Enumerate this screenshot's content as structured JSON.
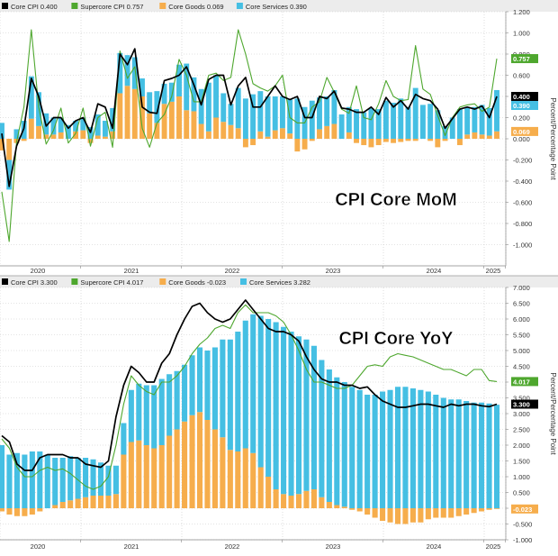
{
  "colors": {
    "core": "#000000",
    "supercore": "#4ea72e",
    "goods": "#f6ad4c",
    "services": "#45bfe3",
    "grid": "#c8c8c8",
    "legend_bg": "#ececec",
    "axis_text": "#333333"
  },
  "axis": {
    "side_label": "Percent/Percentage Point",
    "year_labels": [
      "2020",
      "2021",
      "2022",
      "2023",
      "2024",
      "2025"
    ]
  },
  "chart_data": [
    {
      "type": "bar",
      "title": "CPI Core MoM",
      "ylabel": "Percent/Percentage Point",
      "ylim": [
        -1.2,
        1.2
      ],
      "yticks": [
        "1.200",
        "1.000",
        "0.800",
        "0.600",
        "0.400",
        "0.200",
        "0.000",
        "-0.200",
        "-0.400",
        "-0.600",
        "-0.800",
        "-1.000"
      ],
      "legend": [
        {
          "label": "Core CPI",
          "value": "0.400",
          "color": "#000000"
        },
        {
          "label": "Supercore CPI",
          "value": "0.757",
          "color": "#4ea72e"
        },
        {
          "label": "Core Goods",
          "value": "0.069",
          "color": "#f6ad4c"
        },
        {
          "label": "Core Services",
          "value": "0.390",
          "color": "#45bfe3"
        }
      ],
      "end_labels": [
        {
          "text": "0.757",
          "value": 0.757,
          "color": "#4ea72e"
        },
        {
          "text": "0.400",
          "value": 0.4,
          "color": "#000000"
        },
        {
          "text": "0.390",
          "value": 0.39,
          "color": "#45bfe3",
          "under": true
        },
        {
          "text": "0.069",
          "value": 0.069,
          "color": "#f6ad4c"
        }
      ],
      "series": [
        {
          "name": "Core Goods",
          "kind": "bar",
          "values": [
            -0.11,
            -0.2,
            -0.04,
            -0.02,
            0.19,
            0.12,
            0.04,
            0.04,
            0.06,
            0.0,
            0.07,
            0.08,
            -0.04,
            0.03,
            0.02,
            0.07,
            0.43,
            0.5,
            0.47,
            0.4,
            0.24,
            0.15,
            0.33,
            0.35,
            0.4,
            0.27,
            0.26,
            0.14,
            0.07,
            0.2,
            0.16,
            0.13,
            0.1,
            -0.08,
            -0.06,
            0.07,
            0.02,
            0.08,
            0.1,
            0.05,
            -0.12,
            -0.1,
            -0.02,
            0.09,
            0.12,
            0.14,
            0.0,
            0.06,
            -0.04,
            -0.06,
            -0.08,
            -0.06,
            -0.03,
            -0.04,
            -0.03,
            -0.02,
            -0.02,
            0.0,
            -0.02,
            -0.08,
            -0.02,
            0.0,
            -0.06,
            0.04,
            0.06,
            0.04,
            0.03,
            0.07
          ]
        },
        {
          "name": "Core Services",
          "kind": "bar",
          "values": [
            0.15,
            -0.28,
            0.09,
            0.17,
            0.4,
            0.32,
            0.2,
            0.16,
            0.14,
            0.13,
            0.1,
            0.12,
            0.11,
            0.2,
            0.15,
            0.22,
            0.38,
            0.29,
            0.3,
            0.17,
            0.2,
            0.3,
            0.19,
            0.18,
            0.3,
            0.44,
            0.32,
            0.33,
            0.46,
            0.4,
            0.27,
            0.2,
            0.38,
            0.38,
            0.42,
            0.38,
            0.38,
            0.32,
            0.3,
            0.32,
            0.38,
            0.3,
            0.36,
            0.3,
            0.28,
            0.32,
            0.23,
            0.24,
            0.28,
            0.25,
            0.29,
            0.28,
            0.36,
            0.34,
            0.38,
            0.3,
            0.48,
            0.32,
            0.33,
            0.27,
            0.12,
            0.2,
            0.28,
            0.26,
            0.24,
            0.28,
            0.26,
            0.39
          ]
        },
        {
          "name": "Core CPI",
          "kind": "line",
          "values": [
            0.05,
            -0.45,
            -0.07,
            0.1,
            0.57,
            0.4,
            0.12,
            0.2,
            0.2,
            0.1,
            0.17,
            0.2,
            0.06,
            0.33,
            0.3,
            0.1,
            0.8,
            0.7,
            0.85,
            0.3,
            0.25,
            0.24,
            0.55,
            0.57,
            0.6,
            0.68,
            0.51,
            0.32,
            0.56,
            0.6,
            0.6,
            0.32,
            0.5,
            0.58,
            0.3,
            0.3,
            0.4,
            0.5,
            0.4,
            0.37,
            0.4,
            0.2,
            0.2,
            0.4,
            0.38,
            0.45,
            0.29,
            0.28,
            0.25,
            0.25,
            0.3,
            0.23,
            0.39,
            0.3,
            0.36,
            0.28,
            0.42,
            0.38,
            0.36,
            0.28,
            0.1,
            0.19,
            0.28,
            0.3,
            0.28,
            0.31,
            0.2,
            0.4
          ]
        },
        {
          "name": "Supercore CPI",
          "kind": "line",
          "values": [
            -0.5,
            -0.97,
            -0.03,
            0.3,
            1.03,
            0.3,
            -0.05,
            0.08,
            0.29,
            -0.04,
            0.05,
            0.29,
            -0.07,
            0.2,
            0.25,
            -0.08,
            0.83,
            0.57,
            0.68,
            0.1,
            -0.08,
            0.15,
            0.23,
            0.4,
            0.75,
            0.6,
            0.35,
            0.35,
            0.6,
            0.62,
            0.55,
            0.58,
            1.03,
            0.8,
            0.52,
            0.48,
            0.45,
            0.5,
            0.6,
            0.2,
            0.15,
            0.15,
            0.3,
            0.35,
            0.58,
            0.44,
            0.28,
            0.24,
            0.5,
            0.2,
            0.18,
            0.33,
            0.55,
            0.4,
            0.36,
            0.37,
            0.88,
            0.47,
            0.42,
            0.22,
            0.03,
            0.2,
            0.3,
            0.32,
            0.33,
            0.26,
            0.3,
            0.757
          ]
        }
      ]
    },
    {
      "type": "bar",
      "title": "CPI Core YoY",
      "ylabel": "Percent/Percentage Point",
      "ylim": [
        -1.0,
        7.0
      ],
      "yticks": [
        "7.000",
        "6.500",
        "6.000",
        "5.500",
        "5.000",
        "4.500",
        "4.000",
        "3.500",
        "3.000",
        "2.500",
        "2.000",
        "1.500",
        "1.000",
        "0.500",
        "0.000",
        "-0.500",
        "-1.000"
      ],
      "legend": [
        {
          "label": "Core CPI",
          "value": "3.300",
          "color": "#000000"
        },
        {
          "label": "Supercore CPI",
          "value": "4.017",
          "color": "#4ea72e"
        },
        {
          "label": "Core Goods",
          "value": "-0.023",
          "color": "#f6ad4c"
        },
        {
          "label": "Core Services",
          "value": "3.282",
          "color": "#45bfe3"
        }
      ],
      "end_labels": [
        {
          "text": "4.017",
          "value": 4.017,
          "color": "#4ea72e"
        },
        {
          "text": "3.300",
          "value": 3.3,
          "color": "#000000"
        },
        {
          "text": "-0.023",
          "value": -0.023,
          "color": "#f6ad4c"
        }
      ],
      "series": [
        {
          "name": "Core Goods",
          "kind": "bar",
          "values": [
            -0.1,
            -0.2,
            -0.25,
            -0.25,
            -0.2,
            -0.1,
            0.0,
            0.1,
            0.2,
            0.25,
            0.3,
            0.35,
            0.4,
            0.4,
            0.4,
            0.45,
            1.7,
            2.1,
            2.15,
            2.0,
            1.9,
            2.0,
            2.3,
            2.5,
            2.75,
            2.95,
            3.05,
            2.8,
            2.5,
            2.25,
            1.85,
            1.8,
            1.9,
            1.75,
            1.3,
            1.0,
            0.6,
            0.45,
            0.4,
            0.45,
            0.55,
            0.6,
            0.35,
            0.2,
            0.1,
            0.05,
            -0.05,
            -0.1,
            -0.2,
            -0.3,
            -0.4,
            -0.45,
            -0.5,
            -0.5,
            -0.45,
            -0.45,
            -0.35,
            -0.3,
            -0.3,
            -0.3,
            -0.25,
            -0.2,
            -0.15,
            -0.1,
            -0.05,
            -0.023
          ]
        },
        {
          "name": "Core Services",
          "kind": "bar",
          "values": [
            2.0,
            1.7,
            1.75,
            1.7,
            1.8,
            1.8,
            1.7,
            1.5,
            1.4,
            1.4,
            1.3,
            1.25,
            1.15,
            1.05,
            0.95,
            0.9,
            1.0,
            1.65,
            1.8,
            1.9,
            2.0,
            2.1,
            1.95,
            1.85,
            1.8,
            1.9,
            2.05,
            2.2,
            2.6,
            3.1,
            3.5,
            3.8,
            4.05,
            4.4,
            4.8,
            5.0,
            5.3,
            5.3,
            5.2,
            5.0,
            4.8,
            4.55,
            4.35,
            4.2,
            4.05,
            3.95,
            3.85,
            3.75,
            3.6,
            3.6,
            3.7,
            3.75,
            3.85,
            3.85,
            3.8,
            3.75,
            3.7,
            3.6,
            3.5,
            3.45,
            3.45,
            3.4,
            3.35,
            3.35,
            3.32,
            3.282
          ]
        },
        {
          "name": "Core CPI",
          "kind": "line",
          "values": [
            2.3,
            2.1,
            1.4,
            1.2,
            1.2,
            1.6,
            1.7,
            1.7,
            1.7,
            1.6,
            1.6,
            1.4,
            1.35,
            1.3,
            1.5,
            2.9,
            3.9,
            4.5,
            4.3,
            4.0,
            4.0,
            4.6,
            4.9,
            5.5,
            6.0,
            6.4,
            6.5,
            6.2,
            6.0,
            5.9,
            6.0,
            6.3,
            6.6,
            6.3,
            6.0,
            5.7,
            5.6,
            5.6,
            5.5,
            5.3,
            4.8,
            4.4,
            4.1,
            4.0,
            4.0,
            3.9,
            3.9,
            3.8,
            3.85,
            3.6,
            3.4,
            3.3,
            3.2,
            3.2,
            3.25,
            3.3,
            3.3,
            3.25,
            3.2,
            3.3,
            3.25,
            3.3,
            3.3,
            3.25,
            3.22,
            3.3
          ]
        },
        {
          "name": "Supercore CPI",
          "kind": "line",
          "values": [
            2.2,
            1.9,
            1.3,
            1.0,
            1.0,
            1.2,
            1.3,
            1.2,
            1.25,
            1.1,
            0.9,
            0.7,
            0.6,
            0.7,
            1.0,
            2.0,
            3.3,
            4.2,
            3.9,
            3.7,
            3.6,
            4.0,
            4.0,
            4.2,
            4.5,
            4.9,
            5.2,
            5.4,
            5.7,
            5.8,
            5.7,
            6.2,
            6.45,
            6.2,
            6.2,
            6.2,
            6.1,
            5.9,
            5.5,
            5.0,
            4.4,
            4.0,
            4.0,
            3.9,
            3.8,
            3.8,
            3.9,
            4.2,
            4.5,
            4.55,
            4.5,
            4.8,
            4.9,
            4.85,
            4.8,
            4.7,
            4.6,
            4.5,
            4.4,
            4.4,
            4.3,
            4.2,
            4.4,
            4.4,
            4.05,
            4.017
          ]
        }
      ]
    }
  ]
}
